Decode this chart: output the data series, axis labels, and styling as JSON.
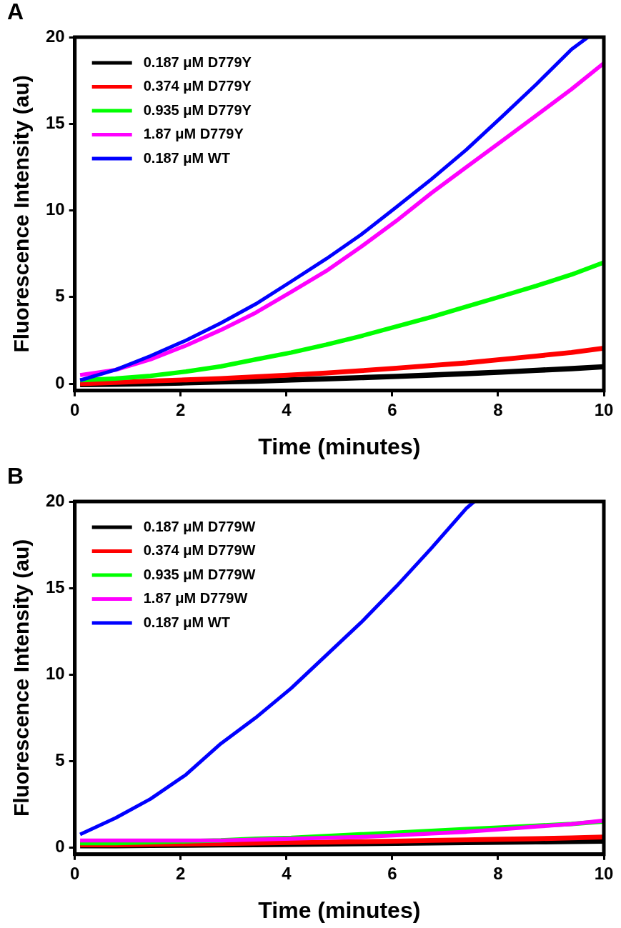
{
  "chart_data": [
    {
      "type": "line",
      "title": "A",
      "xlabel": "Time (minutes)",
      "ylabel": "Fluorescence Intensity (au)",
      "x": [
        0.1,
        0.77,
        1.43,
        2.1,
        2.76,
        3.42,
        4.09,
        4.75,
        5.41,
        6.08,
        6.74,
        7.4,
        8.07,
        8.73,
        9.39,
        10
      ],
      "xlim": [
        0,
        10
      ],
      "xticks": [
        0,
        2,
        4,
        6,
        8,
        10
      ],
      "ylim": [
        -0.4,
        20
      ],
      "yticks": [
        0,
        5,
        10,
        15,
        20
      ],
      "legend": "top left",
      "grid": false,
      "marker": "none",
      "line_style": "solid",
      "series": [
        {
          "name": "0.187 μM D779Y",
          "color": "#000000",
          "values": [
            -0.05,
            -0.03,
            0,
            0.05,
            0.1,
            0.15,
            0.22,
            0.28,
            0.35,
            0.42,
            0.5,
            0.58,
            0.67,
            0.77,
            0.87,
            0.98
          ]
        },
        {
          "name": "0.374 μM D779Y",
          "color": "#ff0000",
          "values": [
            0,
            0.07,
            0.15,
            0.22,
            0.3,
            0.4,
            0.5,
            0.62,
            0.75,
            0.9,
            1.05,
            1.2,
            1.4,
            1.6,
            1.8,
            2.05
          ]
        },
        {
          "name": "0.935 μM D779Y",
          "color": "#00ff00",
          "values": [
            0.2,
            0.3,
            0.45,
            0.7,
            1.0,
            1.4,
            1.8,
            2.25,
            2.75,
            3.3,
            3.85,
            4.45,
            5.05,
            5.65,
            6.3,
            7.0
          ]
        },
        {
          "name": "1.87 μM D779Y",
          "color": "#ff00ff",
          "values": [
            0.5,
            0.8,
            1.4,
            2.2,
            3.1,
            4.1,
            5.3,
            6.5,
            7.9,
            9.4,
            11.0,
            12.5,
            14.0,
            15.5,
            17.0,
            18.5
          ]
        },
        {
          "name": "0.187 μM WT",
          "color": "#0000ff",
          "x": [
            0.1,
            0.77,
            1.43,
            2.1,
            2.76,
            3.42,
            4.09,
            4.75,
            5.41,
            6.08,
            6.74,
            7.4,
            8.07,
            8.73,
            9.39,
            9.7
          ],
          "values": [
            0.2,
            0.8,
            1.6,
            2.5,
            3.5,
            4.6,
            5.9,
            7.2,
            8.6,
            10.2,
            11.8,
            13.5,
            15.4,
            17.3,
            19.3,
            20
          ]
        }
      ]
    },
    {
      "type": "line",
      "title": "B",
      "xlabel": "Time (minutes)",
      "ylabel": "Fluorescence Intensity (au)",
      "x": [
        0.1,
        0.77,
        1.43,
        2.1,
        2.76,
        3.42,
        4.09,
        4.75,
        5.41,
        6.08,
        6.74,
        7.4,
        8.07,
        8.73,
        9.39,
        10
      ],
      "xlim": [
        0,
        10
      ],
      "xticks": [
        0,
        2,
        4,
        6,
        8,
        10
      ],
      "ylim": [
        -0.4,
        20
      ],
      "yticks": [
        0,
        5,
        10,
        15,
        20
      ],
      "legend": "top left",
      "grid": false,
      "marker": "none",
      "line_style": "solid",
      "series": [
        {
          "name": "0.187 μM D779W",
          "color": "#000000",
          "values": [
            0.1,
            0.1,
            0.12,
            0.13,
            0.15,
            0.16,
            0.18,
            0.2,
            0.22,
            0.24,
            0.26,
            0.28,
            0.3,
            0.32,
            0.34,
            0.36
          ]
        },
        {
          "name": "0.374 μM D779W",
          "color": "#ff0000",
          "values": [
            0.15,
            0.15,
            0.18,
            0.2,
            0.22,
            0.25,
            0.28,
            0.3,
            0.33,
            0.36,
            0.4,
            0.43,
            0.47,
            0.5,
            0.55,
            0.6
          ]
        },
        {
          "name": "0.935 μM D779W",
          "color": "#00ff00",
          "values": [
            0.25,
            0.25,
            0.3,
            0.35,
            0.4,
            0.5,
            0.55,
            0.65,
            0.75,
            0.85,
            0.95,
            1.05,
            1.15,
            1.25,
            1.35,
            1.5
          ]
        },
        {
          "name": "1.87 μM D779W",
          "color": "#ff00ff",
          "values": [
            0.4,
            0.4,
            0.4,
            0.4,
            0.4,
            0.45,
            0.5,
            0.55,
            0.6,
            0.7,
            0.8,
            0.9,
            1.05,
            1.2,
            1.35,
            1.55
          ]
        },
        {
          "name": "0.187 μM WT",
          "color": "#0000ff",
          "x": [
            0.1,
            0.77,
            1.43,
            2.1,
            2.76,
            3.42,
            4.09,
            4.75,
            5.41,
            6.08,
            6.74,
            7.4,
            7.55
          ],
          "values": [
            0.75,
            1.7,
            2.8,
            4.2,
            6.0,
            7.5,
            9.2,
            11.1,
            13.0,
            15.1,
            17.3,
            19.6,
            20
          ]
        }
      ]
    }
  ]
}
